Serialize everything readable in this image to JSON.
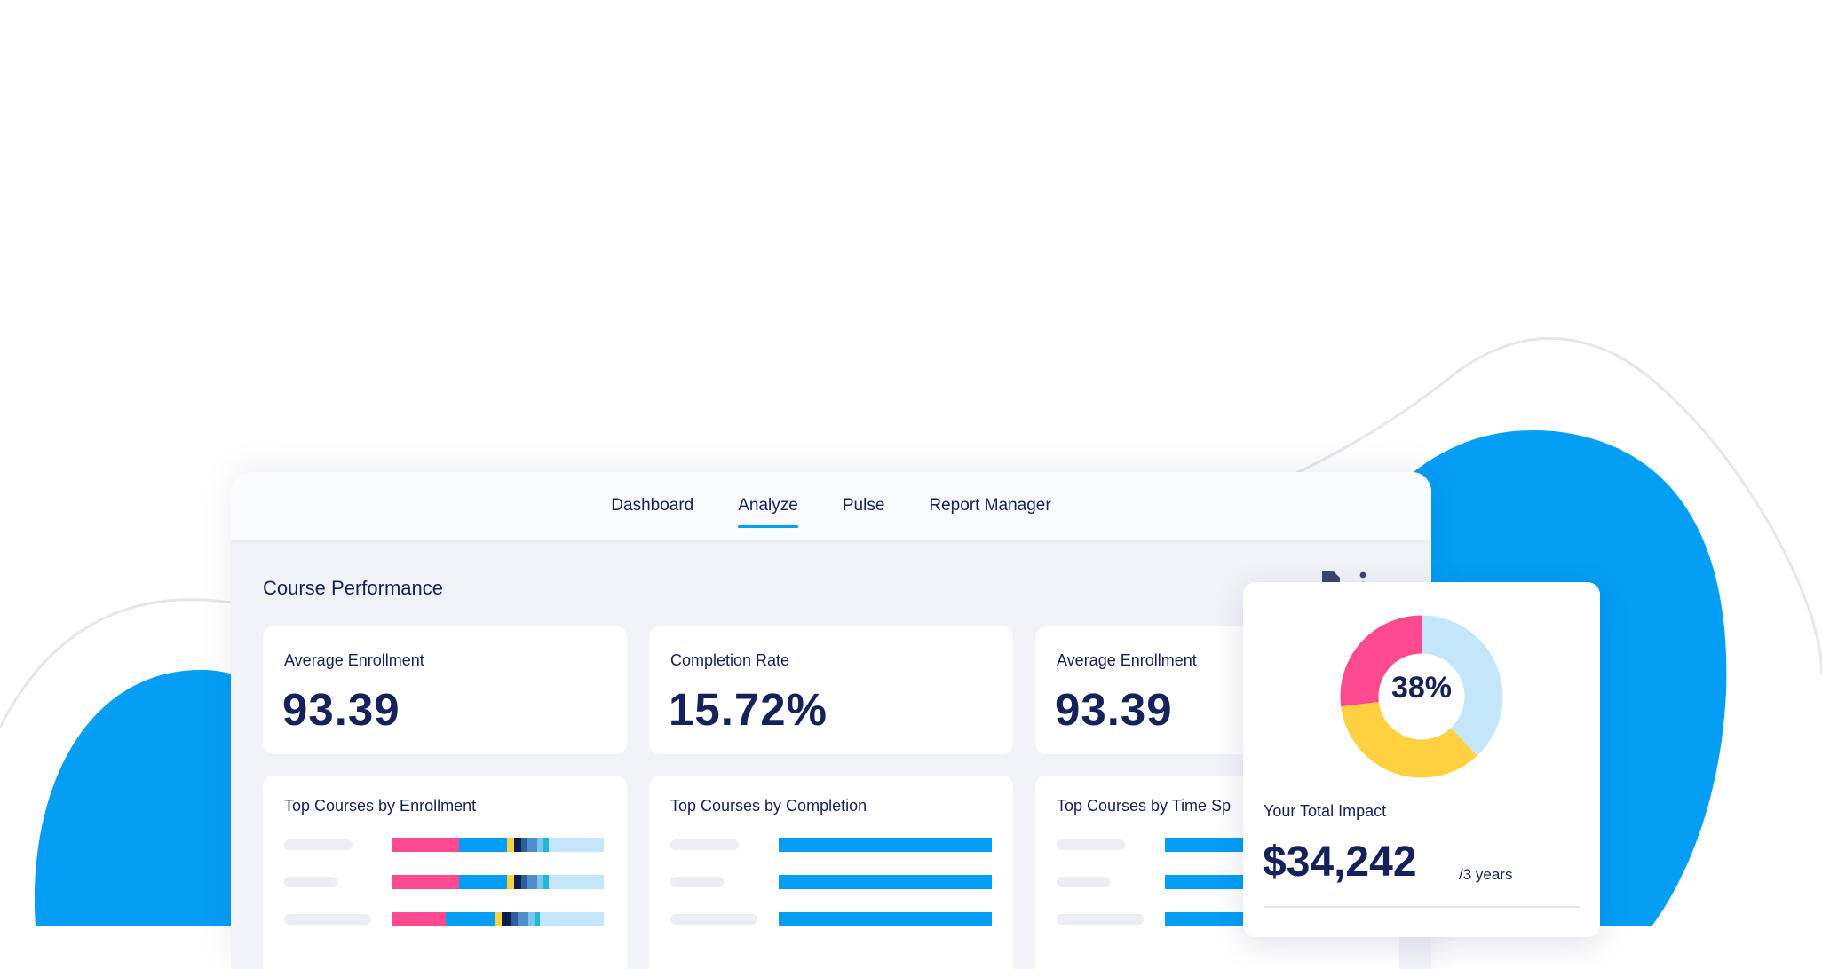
{
  "nav": {
    "tabs": [
      {
        "label": "Dashboard"
      },
      {
        "label": "Analyze"
      },
      {
        "label": "Pulse"
      },
      {
        "label": "Report Manager"
      }
    ],
    "active_tab": "Analyze"
  },
  "section": {
    "title": "Course Performance"
  },
  "header_icons": [
    "export-icon",
    "more-vertical-icon"
  ],
  "stats": [
    {
      "label": "Average Enrollment",
      "value": "93.39"
    },
    {
      "label": "Completion Rate",
      "value": "15.72%"
    },
    {
      "label": "Average Enrollment",
      "value": "93.39"
    }
  ],
  "charts": [
    {
      "title": "Top Courses by Enrollment"
    },
    {
      "title": "Top Courses by Completion"
    },
    {
      "title": "Top Courses by Time Sp"
    }
  ],
  "impact": {
    "label": "Your Total Impact",
    "value": "$34,242",
    "unit": "/3 years",
    "percent_label": "38%",
    "segments": [
      {
        "share": 0.38,
        "color": "#c4e6fb"
      },
      {
        "share": 0.35,
        "color": "#ffd03f"
      },
      {
        "share": 0.27,
        "color": "#fd4a8f"
      }
    ]
  },
  "colors": {
    "brand_blue": "#049ef4",
    "navy": "#14215a",
    "pink": "#fd4a8f",
    "yellow": "#ffd03f",
    "light_blue": "#c4e6fb"
  }
}
